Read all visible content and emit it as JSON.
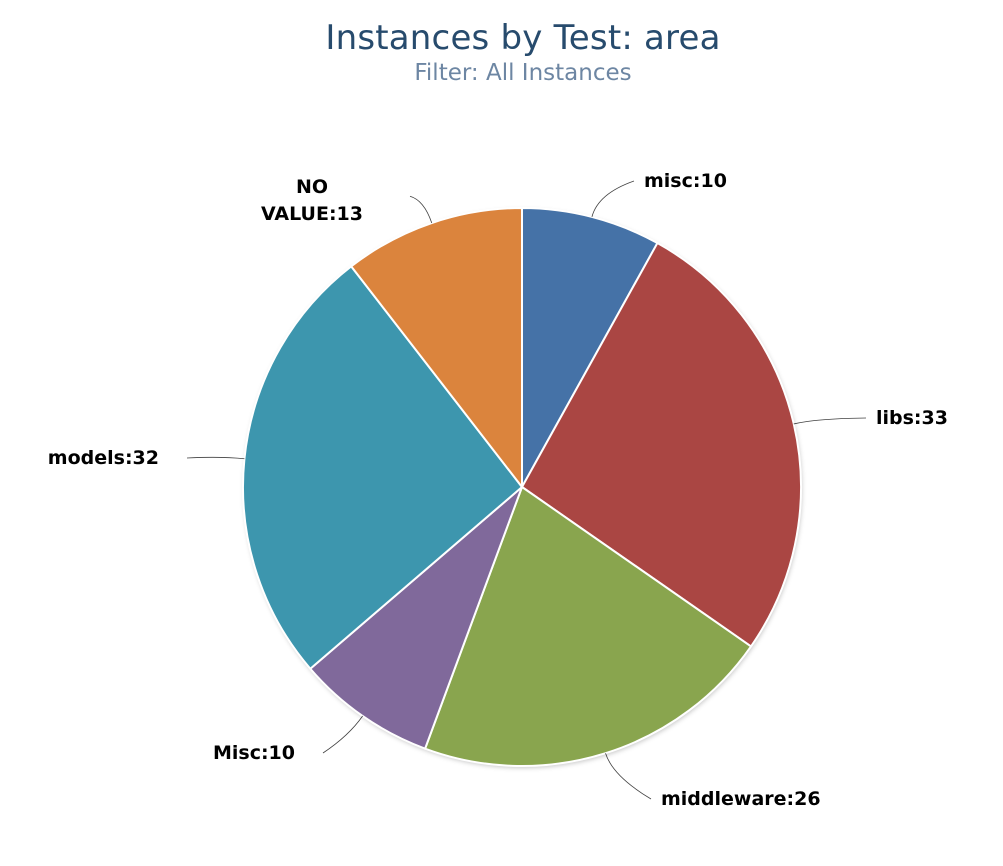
{
  "chart_data": {
    "type": "pie",
    "title": "Instances by Test: area",
    "subtitle": "Filter: All Instances",
    "slices": [
      {
        "name": "misc",
        "value": 10,
        "label": "misc:10",
        "color": "#4572a7"
      },
      {
        "name": "libs",
        "value": 33,
        "label": "libs:33",
        "color": "#aa4643"
      },
      {
        "name": "middleware",
        "value": 26,
        "label": "middleware:26",
        "color": "#89a54e"
      },
      {
        "name": "Misc",
        "value": 10,
        "label": "Misc:10",
        "color": "#80699b"
      },
      {
        "name": "models",
        "value": 32,
        "label": "models:32",
        "color": "#3d96ae"
      },
      {
        "name": "NO VALUE",
        "value": 13,
        "label": "NO VALUE:13",
        "label_lines": [
          "NO",
          "VALUE:13"
        ],
        "color": "#db843d"
      }
    ]
  }
}
